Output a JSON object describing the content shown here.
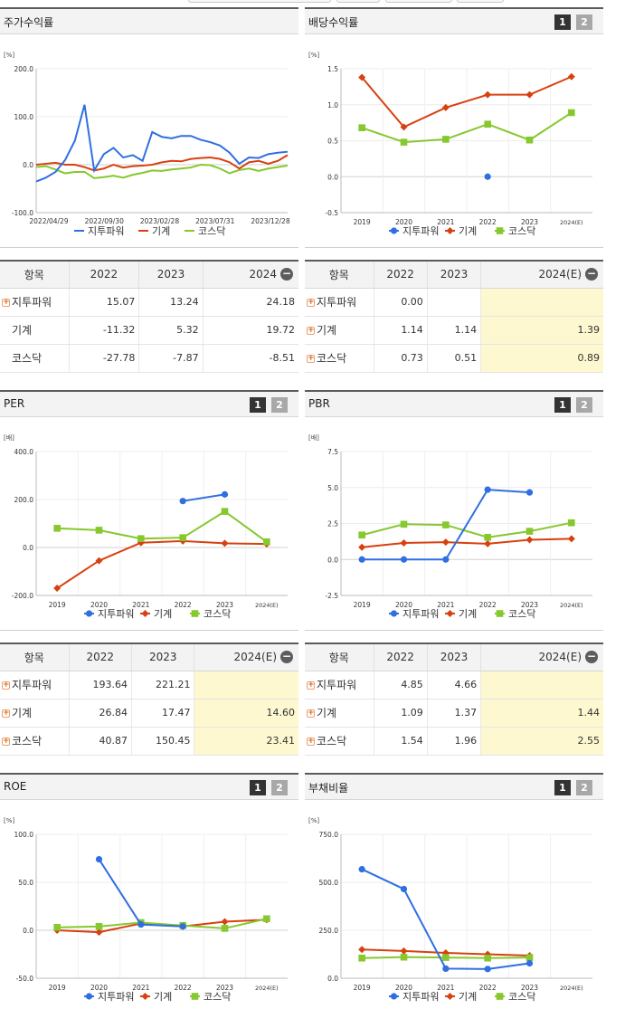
{
  "colors": {
    "s1": "#2f6fe0",
    "s2": "#d8400f",
    "s3": "#86c82e"
  },
  "legend": [
    "지투파워",
    "기계",
    "코스닥"
  ],
  "panels": [
    {
      "title": "주가수익률",
      "buttons": false,
      "unit": "[%]",
      "chart_data": {
        "type": "line",
        "ylim": [
          -100,
          200
        ],
        "yticks": [
          "200.0",
          "100.0",
          "0.0",
          "-100.0"
        ],
        "ytick_values": [
          200,
          100,
          0,
          -100
        ],
        "xticks": [
          "2022/04/29",
          "2022/09/30",
          "2023/02/28",
          "2023/07/31",
          "2023/12/28"
        ],
        "series": [
          {
            "name": "지투파워",
            "values": [
              -35,
              -27,
              -15,
              10,
              50,
              125,
              -12,
              22,
              35,
              15,
              20,
              8,
              68,
              58,
              55,
              60,
              60,
              52,
              47,
              40,
              25,
              2,
              15,
              14,
              22,
              25,
              27
            ]
          },
          {
            "name": "기계",
            "values": [
              0,
              2,
              4,
              0,
              0,
              -5,
              -12,
              -8,
              0,
              -6,
              -3,
              -2,
              0,
              5,
              8,
              7,
              12,
              14,
              15,
              12,
              5,
              -8,
              5,
              8,
              2,
              8,
              20
            ]
          },
          {
            "name": "코스닥",
            "values": [
              -5,
              -3,
              -10,
              -18,
              -15,
              -15,
              -28,
              -26,
              -23,
              -27,
              -21,
              -17,
              -12,
              -13,
              -10,
              -8,
              -6,
              0,
              -1,
              -8,
              -18,
              -11,
              -8,
              -13,
              -8,
              -5,
              -2
            ]
          }
        ]
      }
    },
    {
      "title": "배당수익률",
      "buttons": true,
      "btn1": "1",
      "btn2": "2",
      "unit": "[%]",
      "chart_data": {
        "type": "line",
        "ylim": [
          -0.5,
          1.5
        ],
        "yticks": [
          "1.5",
          "1.0",
          "0.5",
          "0.0",
          "-0.5"
        ],
        "ytick_values": [
          1.5,
          1.0,
          0.5,
          0.0,
          -0.5
        ],
        "categories": [
          "2019",
          "2020",
          "2021",
          "2022",
          "2023",
          "2024(E)"
        ],
        "series": [
          {
            "name": "지투파워",
            "values": [
              null,
              null,
              null,
              0.0,
              null,
              null
            ]
          },
          {
            "name": "기계",
            "values": [
              1.38,
              0.69,
              0.96,
              1.14,
              1.14,
              1.39
            ]
          },
          {
            "name": "코스닥",
            "values": [
              0.68,
              0.48,
              0.52,
              0.73,
              0.51,
              0.89
            ]
          }
        ]
      }
    },
    {
      "title": "PER",
      "buttons": true,
      "btn1": "1",
      "btn2": "2",
      "unit": "[배]",
      "chart_data": {
        "type": "line",
        "ylim": [
          -200,
          400
        ],
        "yticks": [
          "400.0",
          "200.0",
          "0.0",
          "-200.0"
        ],
        "ytick_values": [
          400,
          200,
          0,
          -200
        ],
        "categories": [
          "2019",
          "2020",
          "2021",
          "2022",
          "2023",
          "2024(E)"
        ],
        "series": [
          {
            "name": "지투파워",
            "values": [
              null,
              null,
              null,
              193.64,
              221.21,
              null
            ]
          },
          {
            "name": "기계",
            "values": [
              -170,
              -55,
              20,
              26.84,
              17.47,
              14.6
            ]
          },
          {
            "name": "코스닥",
            "values": [
              80,
              72,
              37,
              40.87,
              150.45,
              23.41
            ]
          }
        ]
      }
    },
    {
      "title": "PBR",
      "buttons": true,
      "btn1": "1",
      "btn2": "2",
      "unit": "[배]",
      "chart_data": {
        "type": "line",
        "ylim": [
          -2.5,
          7.5
        ],
        "yticks": [
          "7.5",
          "5.0",
          "2.5",
          "0.0",
          "-2.5"
        ],
        "ytick_values": [
          7.5,
          5.0,
          2.5,
          0.0,
          -2.5
        ],
        "categories": [
          "2019",
          "2020",
          "2021",
          "2022",
          "2023",
          "2024(E)"
        ],
        "series": [
          {
            "name": "지투파워",
            "values": [
              0.0,
              0.0,
              0.0,
              4.85,
              4.66,
              null
            ]
          },
          {
            "name": "기계",
            "values": [
              0.85,
              1.15,
              1.2,
              1.09,
              1.37,
              1.44
            ]
          },
          {
            "name": "코스닥",
            "values": [
              1.7,
              2.45,
              2.4,
              1.54,
              1.96,
              2.55
            ]
          }
        ]
      }
    },
    {
      "title": "ROE",
      "buttons": true,
      "btn1": "1",
      "btn2": "2",
      "unit": "[%]",
      "chart_data": {
        "type": "line",
        "ylim": [
          -50,
          100
        ],
        "yticks": [
          "100.0",
          "50.0",
          "0.0",
          "-50.0"
        ],
        "ytick_values": [
          100,
          50,
          0,
          -50
        ],
        "categories": [
          "2019",
          "2020",
          "2021",
          "2022",
          "2023",
          "2024(E)"
        ],
        "series": [
          {
            "name": "지투파워",
            "values": [
              null,
              74,
              6,
              4,
              null,
              null
            ]
          },
          {
            "name": "기계",
            "values": [
              0,
              -2,
              7,
              4,
              9,
              11
            ]
          },
          {
            "name": "코스닥",
            "values": [
              3,
              4,
              8,
              5,
              2,
              12
            ]
          }
        ]
      }
    },
    {
      "title": "부채비율",
      "buttons": true,
      "btn1": "1",
      "btn2": "2",
      "unit": "[%]",
      "chart_data": {
        "type": "line",
        "ylim": [
          0,
          750
        ],
        "yticks": [
          "750.0",
          "500.0",
          "250.0",
          "0.0"
        ],
        "ytick_values": [
          750,
          500,
          250,
          0
        ],
        "categories": [
          "2019",
          "2020",
          "2021",
          "2022",
          "2023",
          "2024(E)"
        ],
        "series": [
          {
            "name": "지투파워",
            "values": [
              568,
              465,
              50,
              48,
              78,
              null
            ]
          },
          {
            "name": "기계",
            "values": [
              150,
              142,
              132,
              125,
              118,
              null
            ]
          },
          {
            "name": "코스닥",
            "values": [
              105,
              110,
              108,
              105,
              108,
              null
            ]
          }
        ]
      }
    }
  ],
  "tables": [
    {
      "headers": [
        "항목",
        "2022",
        "2023",
        "2024"
      ],
      "rows": [
        {
          "name": "지투파워",
          "plus": true,
          "values": [
            "15.07",
            "13.24",
            "24.18"
          ]
        },
        {
          "name": "기계",
          "plus": false,
          "values": [
            "-11.32",
            "5.32",
            "19.72"
          ]
        },
        {
          "name": "코스닥",
          "plus": false,
          "values": [
            "-27.78",
            "-7.87",
            "-8.51"
          ]
        }
      ]
    },
    {
      "headers": [
        "항목",
        "2022",
        "2023",
        "2024(E)"
      ],
      "rows": [
        {
          "name": "지투파워",
          "plus": true,
          "values": [
            "0.00",
            "",
            ""
          ]
        },
        {
          "name": "기계",
          "plus": true,
          "values": [
            "1.14",
            "1.14",
            "1.39"
          ]
        },
        {
          "name": "코스닥",
          "plus": true,
          "values": [
            "0.73",
            "0.51",
            "0.89"
          ]
        }
      ]
    },
    {
      "headers": [
        "항목",
        "2022",
        "2023",
        "2024(E)"
      ],
      "rows": [
        {
          "name": "지투파워",
          "plus": true,
          "values": [
            "193.64",
            "221.21",
            ""
          ]
        },
        {
          "name": "기계",
          "plus": true,
          "values": [
            "26.84",
            "17.47",
            "14.60"
          ]
        },
        {
          "name": "코스닥",
          "plus": true,
          "values": [
            "40.87",
            "150.45",
            "23.41"
          ]
        }
      ]
    },
    {
      "headers": [
        "항목",
        "2022",
        "2023",
        "2024(E)"
      ],
      "rows": [
        {
          "name": "지투파워",
          "plus": true,
          "values": [
            "4.85",
            "4.66",
            ""
          ]
        },
        {
          "name": "기계",
          "plus": true,
          "values": [
            "1.09",
            "1.37",
            "1.44"
          ]
        },
        {
          "name": "코스닥",
          "plus": true,
          "values": [
            "1.54",
            "1.96",
            "2.55"
          ]
        }
      ]
    }
  ]
}
